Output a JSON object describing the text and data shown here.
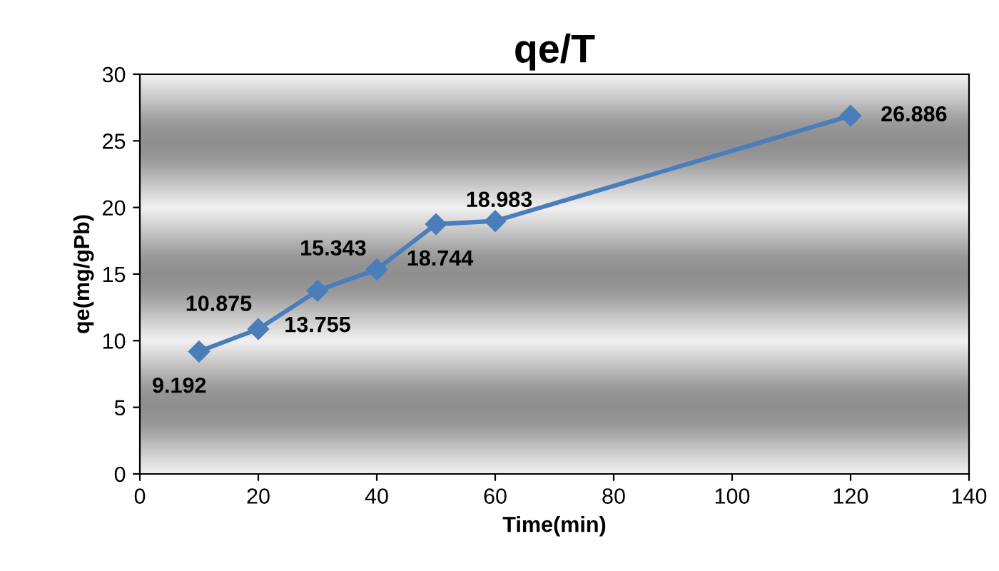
{
  "chart_data": {
    "type": "line",
    "title": "qe/T",
    "xlabel": "Time(min)",
    "ylabel": "qe(mg/gPb)",
    "x": [
      10,
      20,
      30,
      40,
      50,
      60,
      120
    ],
    "series": [
      {
        "color": "#4a7ebb",
        "values": [
          9.192,
          10.875,
          13.755,
          15.343,
          18.744,
          18.983,
          26.886
        ]
      }
    ],
    "xlim": [
      0,
      140
    ],
    "xticks": [
      0,
      20,
      40,
      60,
      80,
      100,
      120,
      140
    ],
    "ylim": [
      0,
      30
    ],
    "yticks": [
      0,
      5,
      10,
      15,
      20,
      25,
      30
    ],
    "marker": "diamond",
    "line_style": "solid",
    "data_labels": true,
    "grid": false
  }
}
